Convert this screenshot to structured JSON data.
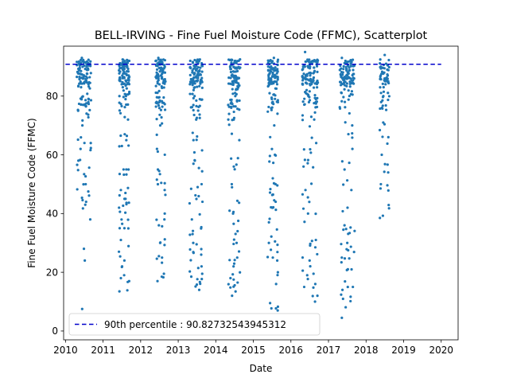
{
  "chart_data": {
    "type": "scatter",
    "title": "BELL-IRVING - Fine Fuel Moisture Code (FFMC), Scatterplot",
    "xlabel": "Date",
    "ylabel": "Fine Fuel Moisture Code (FFMC)",
    "xlim": [
      2009.95,
      2020.45
    ],
    "ylim": [
      -3,
      97
    ],
    "x_ticks": [
      "2010",
      "2011",
      "2012",
      "2013",
      "2014",
      "2015",
      "2016",
      "2017",
      "2018",
      "2019",
      "2020"
    ],
    "y_ticks": [
      "0",
      "20",
      "40",
      "60",
      "80"
    ],
    "point_color": "#1f77b4",
    "reference_line": {
      "label": "90th percentile : 90.82732543945312",
      "value": 90.82732543945312,
      "color": "#0000cc",
      "style": "dashed"
    },
    "legend_position": "lower-left",
    "seasons": [
      {
        "year": 2010,
        "start": 2010.3,
        "end": 2010.68,
        "y_lo": [
          38,
          28,
          24,
          7.5,
          43,
          50,
          62,
          64,
          70,
          77,
          83,
          86,
          89,
          91,
          93
        ],
        "count": 120
      },
      {
        "year": 2011,
        "start": 2011.42,
        "end": 2011.7,
        "y_lo": [
          13.5,
          17,
          18,
          22,
          27,
          31,
          35,
          42,
          48,
          55,
          65,
          72,
          80,
          85,
          92
        ],
        "count": 125
      },
      {
        "year": 2012,
        "start": 2012.4,
        "end": 2012.66,
        "y_lo": [
          17,
          19.5,
          25,
          30,
          36,
          38,
          40,
          48,
          55,
          62,
          70,
          78,
          84,
          88,
          93
        ],
        "count": 120
      },
      {
        "year": 2013,
        "start": 2013.3,
        "end": 2013.65,
        "y_lo": [
          14,
          19.5,
          22,
          26,
          30,
          33,
          38,
          44,
          50,
          58,
          65,
          72,
          80,
          87,
          92
        ],
        "count": 130
      },
      {
        "year": 2014,
        "start": 2014.33,
        "end": 2014.65,
        "y_lo": [
          12,
          16.5,
          18,
          22,
          25,
          30,
          34,
          40,
          50,
          56,
          65,
          72,
          80,
          87,
          91.5
        ],
        "count": 125
      },
      {
        "year": 2015,
        "start": 2015.38,
        "end": 2015.66,
        "y_lo": [
          2.5,
          7,
          9.5,
          16,
          20,
          25,
          30,
          37,
          44,
          52,
          60,
          70,
          78,
          86,
          93
        ],
        "count": 125
      },
      {
        "year": 2016,
        "start": 2016.3,
        "end": 2016.72,
        "y_lo": [
          10,
          12,
          16,
          19,
          24,
          31,
          40,
          48,
          56,
          64,
          72,
          80,
          86,
          90,
          95
        ],
        "count": 135
      },
      {
        "year": 2017,
        "start": 2017.3,
        "end": 2017.7,
        "y_lo": [
          4.5,
          14,
          15,
          21,
          25,
          30,
          36,
          42,
          48,
          55,
          62,
          70,
          78,
          86,
          93
        ],
        "count": 130
      },
      {
        "year": 2018,
        "start": 2018.36,
        "end": 2018.62,
        "y_lo": [
          38.5,
          50,
          54,
          60,
          66,
          71,
          76,
          80,
          83,
          85,
          87,
          88,
          89,
          91,
          94
        ],
        "count": 60
      }
    ]
  }
}
